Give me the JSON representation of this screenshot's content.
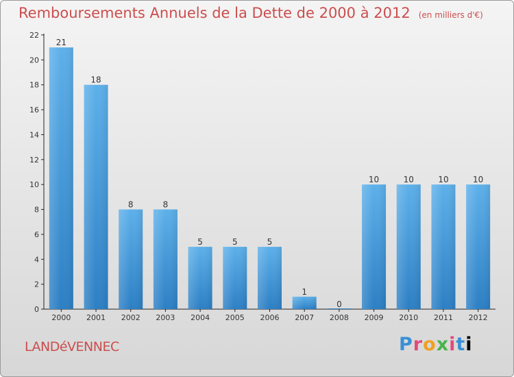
{
  "chart_data": {
    "type": "bar",
    "title": "Remboursements Annuels de la Dette de 2000 à 2012",
    "unit_note": "(en milliers d'€)",
    "categories": [
      "2000",
      "2001",
      "2002",
      "2003",
      "2004",
      "2005",
      "2006",
      "2007",
      "2008",
      "2009",
      "2010",
      "2011",
      "2012"
    ],
    "values": [
      21,
      18,
      8,
      8,
      5,
      5,
      5,
      1,
      0,
      10,
      10,
      10,
      10
    ],
    "ylim": [
      0,
      22
    ],
    "yticks": [
      0,
      2,
      4,
      6,
      8,
      10,
      12,
      14,
      16,
      18,
      20,
      22
    ],
    "grid": false,
    "bar_color": "#4a9ee0"
  },
  "commune": "LANDéVENNEC",
  "brand": {
    "name": "Proxiti",
    "letters": [
      "P",
      "r",
      "o",
      "x",
      "i",
      "t",
      "i"
    ]
  },
  "colors": {
    "title": "#cc4d4d",
    "bar_light": "#5aaee9",
    "bar_dark": "#2f82c8"
  }
}
